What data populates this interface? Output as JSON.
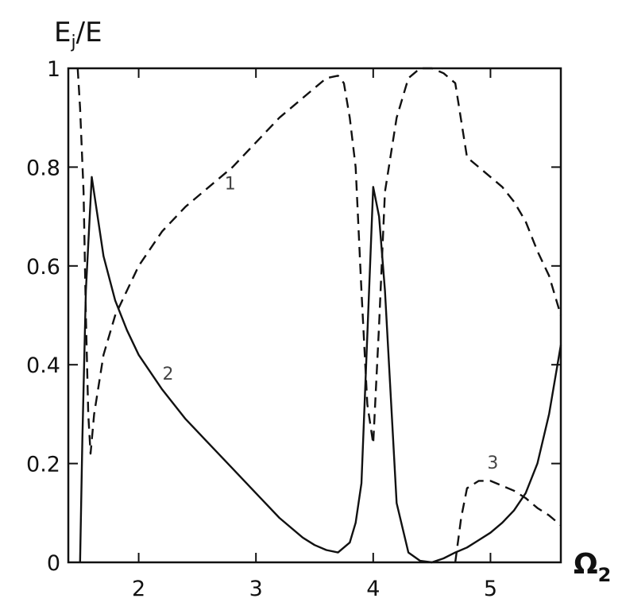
{
  "chart_data": {
    "type": "line",
    "title": "",
    "xlabel": "Ω",
    "xlabel_sub": "2",
    "ylabel_main": "E",
    "ylabel_sub": "j",
    "ylabel_tail": "/E",
    "xlim": [
      1.4,
      5.6
    ],
    "ylim": [
      0,
      1
    ],
    "xticks": [
      2,
      3,
      4,
      5
    ],
    "xtick_labels": [
      "2",
      "3",
      "4",
      "5"
    ],
    "yticks": [
      0,
      0.2,
      0.4,
      0.6,
      0.8,
      1
    ],
    "ytick_labels": [
      "0",
      "0.2",
      "0.4",
      "0.6",
      "0.8",
      "1"
    ],
    "grid": false,
    "legend": "none",
    "series": [
      {
        "label": "1",
        "style": "dashed",
        "label_pos": [
          2.78,
          0.755
        ],
        "x": [
          1.48,
          1.5,
          1.53,
          1.55,
          1.57,
          1.59,
          1.62,
          1.7,
          1.8,
          2.0,
          2.2,
          2.4,
          2.6,
          2.8,
          3.0,
          3.2,
          3.4,
          3.6,
          3.7,
          3.75,
          3.8,
          3.85,
          3.9,
          3.95,
          4.0,
          4.05,
          4.1,
          4.2,
          4.3,
          4.4,
          4.5,
          4.6,
          4.7,
          4.8,
          4.9,
          5.0,
          5.1,
          5.2,
          5.3,
          5.4,
          5.5,
          5.6
        ],
        "y": [
          1.0,
          0.92,
          0.75,
          0.5,
          0.3,
          0.22,
          0.3,
          0.42,
          0.5,
          0.6,
          0.67,
          0.72,
          0.76,
          0.8,
          0.85,
          0.9,
          0.94,
          0.98,
          0.985,
          0.97,
          0.9,
          0.8,
          0.55,
          0.32,
          0.24,
          0.48,
          0.75,
          0.9,
          0.98,
          1.0,
          1.0,
          0.99,
          0.97,
          0.82,
          0.8,
          0.78,
          0.76,
          0.73,
          0.69,
          0.63,
          0.58,
          0.5
        ]
      },
      {
        "label": "2",
        "style": "solid",
        "label_pos": [
          2.25,
          0.37
        ],
        "x": [
          1.5,
          1.52,
          1.55,
          1.6,
          1.7,
          1.8,
          1.9,
          2.0,
          2.2,
          2.4,
          2.6,
          2.8,
          3.0,
          3.2,
          3.4,
          3.5,
          3.6,
          3.7,
          3.8,
          3.85,
          3.9,
          3.95,
          4.0,
          4.05,
          4.1,
          4.2,
          4.3,
          4.4,
          4.5,
          4.6,
          4.7,
          4.8,
          4.9,
          5.0,
          5.1,
          5.2,
          5.3,
          5.4,
          5.5,
          5.6
        ],
        "y": [
          0.0,
          0.25,
          0.55,
          0.78,
          0.62,
          0.53,
          0.47,
          0.42,
          0.35,
          0.29,
          0.24,
          0.19,
          0.14,
          0.09,
          0.05,
          0.035,
          0.025,
          0.02,
          0.04,
          0.08,
          0.16,
          0.46,
          0.76,
          0.7,
          0.55,
          0.12,
          0.02,
          0.003,
          0.0,
          0.008,
          0.02,
          0.03,
          0.045,
          0.06,
          0.08,
          0.105,
          0.14,
          0.2,
          0.3,
          0.44
        ]
      },
      {
        "label": "3",
        "style": "dashed",
        "label_pos": [
          5.02,
          0.19
        ],
        "x": [
          4.7,
          4.75,
          4.8,
          4.9,
          5.0,
          5.1,
          5.2,
          5.3,
          5.4,
          5.5,
          5.6
        ],
        "y": [
          0.0,
          0.09,
          0.15,
          0.165,
          0.165,
          0.155,
          0.145,
          0.13,
          0.11,
          0.095,
          0.075
        ]
      }
    ]
  }
}
